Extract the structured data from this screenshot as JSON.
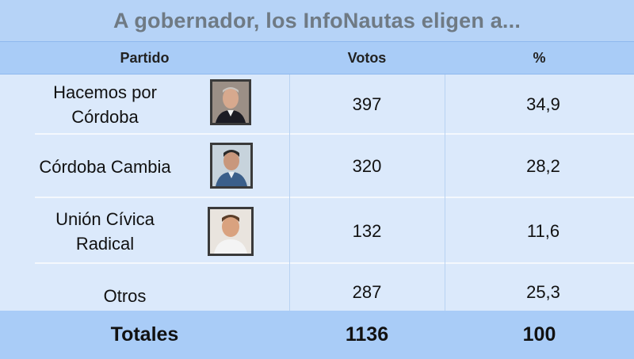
{
  "title": "A gobernador, los InfoNautas eligen a...",
  "columns": [
    "Partido",
    "Votos",
    "%"
  ],
  "rows": [
    {
      "party": "Hacemos por Córdoba",
      "votes": "397",
      "pct": "34,9",
      "photo": "candidate-portrait-icon"
    },
    {
      "party": "Córdoba Cambia",
      "votes": "320",
      "pct": "28,2",
      "photo": "candidate-portrait-icon"
    },
    {
      "party": "Unión Cívica Radical",
      "votes": "132",
      "pct": "11,6",
      "photo": "candidate-portrait-icon"
    },
    {
      "party": "Otros",
      "votes": "287",
      "pct": "25,3",
      "photo": ""
    }
  ],
  "totals": {
    "label": "Totales",
    "votes": "1136",
    "pct": "100"
  }
}
